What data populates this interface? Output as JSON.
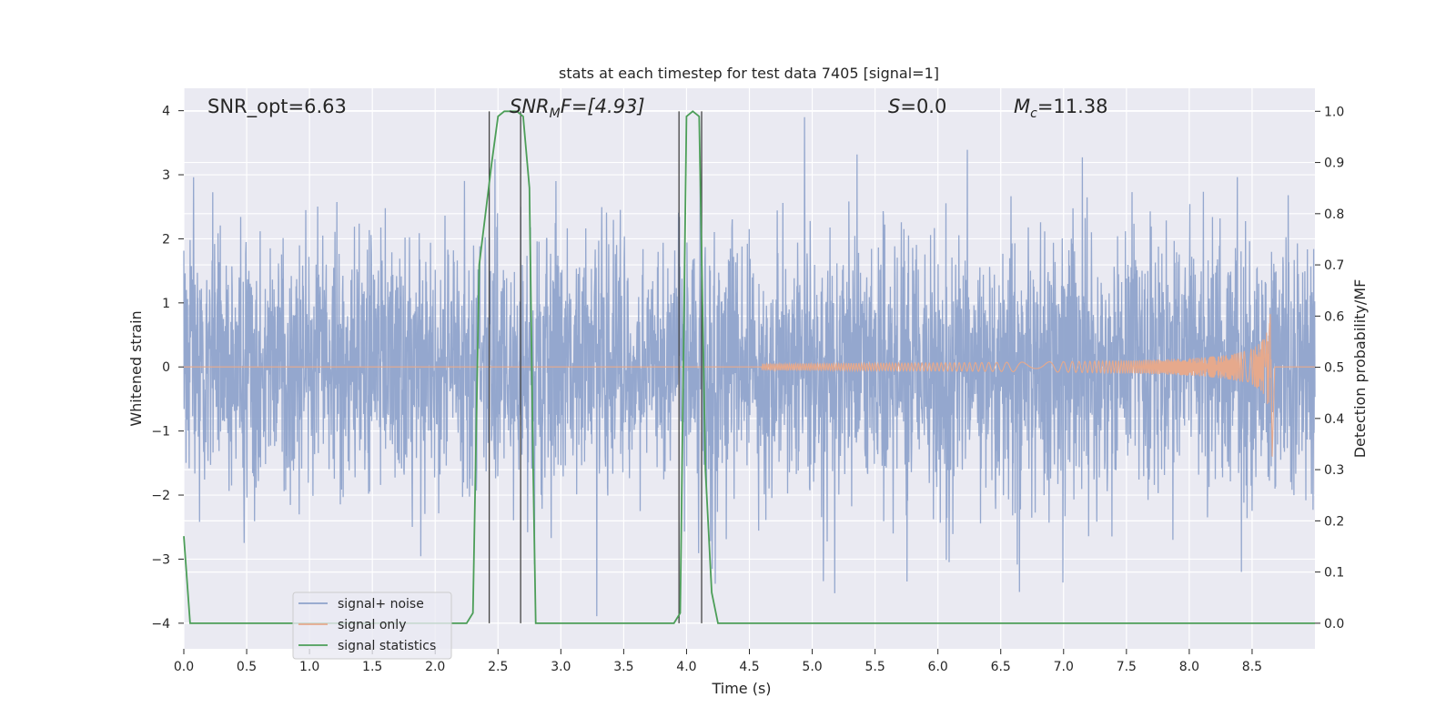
{
  "chart_data": {
    "type": "line",
    "title": "stats at each timestep for test data 7405 [signal=1]",
    "xlabel": "Time (s)",
    "ylabel": "Whitened strain",
    "ylabel_right": "Detection probability/MF",
    "xlim": [
      0.0,
      9.0
    ],
    "ylim": [
      -4.4,
      4.35
    ],
    "ylim_right": [
      -0.05,
      1.045
    ],
    "xticks": [
      "0.0",
      "0.5",
      "1.0",
      "1.5",
      "2.0",
      "2.5",
      "3.0",
      "3.5",
      "4.0",
      "4.5",
      "5.0",
      "5.5",
      "6.0",
      "6.5",
      "7.0",
      "7.5",
      "8.0",
      "8.5"
    ],
    "yticks": [
      "4",
      "3",
      "2",
      "1",
      "0",
      "−1",
      "−2",
      "−3",
      "−4"
    ],
    "yticks_right": [
      "1.0",
      "0.9",
      "0.8",
      "0.7",
      "0.6",
      "0.5",
      "0.4",
      "0.3",
      "0.2",
      "0.1",
      "0.0"
    ],
    "grid": true,
    "legend_position": "lower-left",
    "annotations": {
      "snr_opt": "SNR_opt=6.63",
      "snr_mf_sym": "SNR",
      "snr_mf_sub": "M",
      "snr_mf_rest": "F=[4.93]",
      "s_sym": "S",
      "s_rest": "=0.0",
      "mc_sym": "M",
      "mc_sub": "c",
      "mc_rest": "=11.38"
    },
    "series": [
      {
        "name": "signal+ noise",
        "color": "#8fa3cb",
        "axis": "left",
        "description_values": {
          "noise_sigma": 1.0,
          "peak_max": 3.9,
          "peak_min": -3.95
        }
      },
      {
        "name": "signal only",
        "color": "#e6a98c",
        "axis": "left",
        "chirp": {
          "onset": 4.6,
          "merger": 8.65,
          "peak_amplitude": 0.95,
          "min_amplitude": -1.4
        }
      },
      {
        "name": "signal statistics",
        "color": "#4c9e58",
        "axis": "right",
        "x": [
          0.0,
          0.05,
          0.1,
          0.5,
          1.0,
          1.5,
          1.8,
          2.0,
          2.25,
          2.3,
          2.35,
          2.45,
          2.5,
          2.55,
          2.65,
          2.7,
          2.75,
          2.78,
          2.8,
          2.85,
          3.0,
          3.5,
          3.9,
          3.95,
          4.0,
          4.05,
          4.1,
          4.15,
          4.2,
          4.25,
          4.3,
          5.0,
          6.0,
          7.0,
          8.0,
          8.5,
          9.0
        ],
        "y": [
          0.17,
          0.0,
          0.0,
          0.0,
          0.0,
          0.0,
          0.0,
          0.0,
          0.0,
          0.02,
          0.7,
          0.9,
          0.99,
          1.0,
          1.0,
          0.99,
          0.85,
          0.3,
          0.0,
          0.0,
          0.0,
          0.0,
          0.0,
          0.02,
          0.99,
          1.0,
          0.99,
          0.3,
          0.06,
          0.0,
          0.0,
          0.0,
          0.0,
          0.0,
          0.0,
          0.0,
          0.0
        ]
      }
    ],
    "vertical_lines": [
      2.43,
      2.68,
      3.94,
      4.12
    ]
  }
}
